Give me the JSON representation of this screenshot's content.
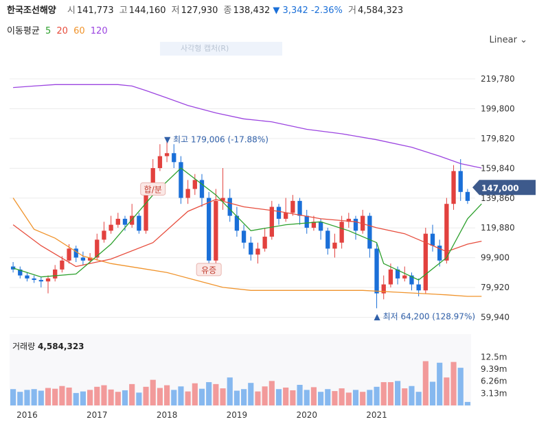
{
  "header": {
    "name": "한국조선해양",
    "open_label": "시",
    "open": "141,773",
    "high_label": "고",
    "high": "144,160",
    "low_label": "저",
    "low": "127,930",
    "close_label": "종",
    "close": "138,432",
    "change": "▼ 3,342 -2.36%",
    "volume_label": "거",
    "volume": "4,584,323"
  },
  "ma": {
    "title": "이동평균",
    "ma5": "5",
    "ma20": "20",
    "ma60": "60",
    "ma120": "120"
  },
  "controls": {
    "scale": "Linear",
    "capture": "사각형 캡처(R)"
  },
  "colors": {
    "up": "#e2413e",
    "down": "#1a6fd8",
    "ma5": "#2ca02c",
    "ma20": "#e74c3c",
    "ma60": "#f0932b",
    "ma120": "#9b44e0"
  },
  "chart_data": {
    "type": "candlestick",
    "price_ticks": [
      "219,780",
      "199,800",
      "179,820",
      "159,840",
      "139,860",
      "119,880",
      "99,900",
      "79,920",
      "59,940"
    ],
    "price_tick_values": [
      219780,
      199800,
      179820,
      159840,
      139860,
      119880,
      99900,
      79920,
      59940
    ],
    "ylim": [
      51000,
      229000
    ],
    "x_ticks": [
      "2016",
      "2017",
      "2018",
      "2019",
      "2020",
      "2021"
    ],
    "current_price_label": "147,000",
    "current_price": 147000,
    "high_annotation": "▼ 최고 179,006 (-17.88%)",
    "low_annotation": "▲ 최저 64,200 (128.97%)",
    "event_labels": [
      "합/분",
      "유증"
    ],
    "volume_title": "거래량",
    "volume_value": "4,584,323",
    "volume_ticks": [
      "12.5m",
      "9.39m",
      "6.26m",
      "3.13m"
    ],
    "volume_tick_values": [
      12.5,
      9.39,
      6.26,
      3.13
    ],
    "volume_ylim": [
      0,
      15.2
    ],
    "candles": [
      [
        94,
        92,
        97,
        90,
        4.2
      ],
      [
        92,
        88,
        94,
        86,
        3.5
      ],
      [
        88,
        86,
        90,
        84,
        4.0
      ],
      [
        86,
        85,
        88,
        83,
        4.2
      ],
      [
        85,
        84,
        87,
        80,
        3.8
      ],
      [
        84,
        86,
        88,
        76,
        4.5
      ],
      [
        86,
        92,
        95,
        84,
        4.3
      ],
      [
        92,
        98,
        101,
        90,
        5.0
      ],
      [
        98,
        106,
        109,
        96,
        4.6
      ],
      [
        106,
        100,
        108,
        97,
        3.2
      ],
      [
        100,
        98,
        104,
        95,
        3.6
      ],
      [
        98,
        100,
        103,
        96,
        4.0
      ],
      [
        100,
        112,
        116,
        98,
        4.8
      ],
      [
        112,
        118,
        124,
        110,
        5.2
      ],
      [
        118,
        122,
        128,
        116,
        4.1
      ],
      [
        122,
        126,
        130,
        120,
        3.5
      ],
      [
        126,
        122,
        128,
        118,
        3.9
      ],
      [
        122,
        128,
        136,
        120,
        5.5
      ],
      [
        128,
        118,
        130,
        116,
        3.3
      ],
      [
        118,
        146,
        150,
        116,
        4.8
      ],
      [
        146,
        160,
        166,
        144,
        6.6
      ],
      [
        160,
        168,
        176,
        158,
        4.5
      ],
      [
        168,
        170,
        178,
        164,
        5.2
      ],
      [
        170,
        164,
        176,
        160,
        4.0
      ],
      [
        164,
        140,
        168,
        136,
        4.9
      ],
      [
        140,
        146,
        152,
        136,
        3.6
      ],
      [
        146,
        152,
        156,
        142,
        5.7
      ],
      [
        152,
        140,
        156,
        134,
        4.3
      ],
      [
        140,
        98,
        144,
        96,
        6.0
      ],
      [
        98,
        138,
        146,
        96,
        5.5
      ],
      [
        138,
        140,
        160,
        132,
        4.4
      ],
      [
        140,
        128,
        146,
        124,
        7.2
      ],
      [
        128,
        118,
        134,
        114,
        3.8
      ],
      [
        118,
        110,
        122,
        106,
        4.2
      ],
      [
        110,
        102,
        114,
        98,
        5.8
      ],
      [
        102,
        106,
        110,
        96,
        3.6
      ],
      [
        106,
        114,
        120,
        104,
        4.9
      ],
      [
        114,
        134,
        138,
        112,
        6.3
      ],
      [
        134,
        126,
        136,
        122,
        4.2
      ],
      [
        126,
        130,
        140,
        124,
        4.6
      ],
      [
        130,
        138,
        142,
        128,
        3.9
      ],
      [
        138,
        128,
        140,
        122,
        5.3
      ],
      [
        128,
        120,
        132,
        116,
        4.0
      ],
      [
        120,
        124,
        128,
        118,
        4.7
      ],
      [
        124,
        118,
        126,
        112,
        3.5
      ],
      [
        118,
        106,
        120,
        102,
        4.2
      ],
      [
        106,
        110,
        116,
        100,
        3.7
      ],
      [
        110,
        124,
        128,
        106,
        4.4
      ],
      [
        124,
        126,
        130,
        120,
        3.3
      ],
      [
        126,
        118,
        128,
        112,
        4.0
      ],
      [
        118,
        128,
        132,
        116,
        3.5
      ],
      [
        128,
        106,
        130,
        100,
        4.0
      ],
      [
        106,
        76,
        110,
        66,
        4.8
      ],
      [
        76,
        82,
        88,
        72,
        6.0
      ],
      [
        82,
        92,
        96,
        80,
        6.0
      ],
      [
        92,
        86,
        94,
        82,
        6.3
      ],
      [
        86,
        88,
        94,
        84,
        4.4
      ],
      [
        88,
        82,
        90,
        78,
        5.0
      ],
      [
        82,
        78,
        86,
        74,
        3.5
      ],
      [
        78,
        116,
        120,
        76,
        11.4
      ],
      [
        116,
        108,
        122,
        104,
        6.1
      ],
      [
        108,
        98,
        112,
        94,
        11.0
      ],
      [
        98,
        136,
        140,
        96,
        7.2
      ],
      [
        136,
        158,
        162,
        132,
        11.2
      ],
      [
        158,
        144,
        166,
        138,
        9.7
      ],
      [
        144,
        138,
        146,
        136,
        0.9
      ]
    ],
    "ma5": [
      [
        0,
        93
      ],
      [
        4,
        87
      ],
      [
        9,
        89
      ],
      [
        14,
        109
      ],
      [
        20,
        142
      ],
      [
        24,
        160
      ],
      [
        29,
        142
      ],
      [
        34,
        118
      ],
      [
        39,
        122
      ],
      [
        44,
        124
      ],
      [
        48,
        118
      ],
      [
        52,
        110
      ],
      [
        53,
        96
      ],
      [
        58,
        85
      ],
      [
        62,
        100
      ],
      [
        65,
        126
      ],
      [
        67,
        136
      ]
    ],
    "ma20": [
      [
        0,
        122
      ],
      [
        4,
        108
      ],
      [
        9,
        94
      ],
      [
        14,
        99
      ],
      [
        20,
        110
      ],
      [
        25,
        131
      ],
      [
        29,
        139
      ],
      [
        33,
        134
      ],
      [
        38,
        131
      ],
      [
        44,
        126
      ],
      [
        49,
        124
      ],
      [
        52,
        120
      ],
      [
        56,
        116
      ],
      [
        59,
        110
      ],
      [
        62,
        104
      ],
      [
        65,
        109
      ],
      [
        67,
        111
      ]
    ],
    "ma60": [
      [
        0,
        140
      ],
      [
        3,
        119
      ],
      [
        6,
        113
      ],
      [
        10,
        101
      ],
      [
        14,
        96
      ],
      [
        18,
        93
      ],
      [
        22,
        90
      ],
      [
        26,
        85
      ],
      [
        30,
        80
      ],
      [
        34,
        78
      ],
      [
        38,
        78
      ],
      [
        42,
        78
      ],
      [
        46,
        78
      ],
      [
        50,
        78
      ],
      [
        54,
        77
      ],
      [
        58,
        76
      ],
      [
        62,
        75
      ],
      [
        65,
        74
      ],
      [
        67,
        74
      ]
    ],
    "ma120": [
      [
        0,
        214
      ],
      [
        3,
        215
      ],
      [
        6,
        216
      ],
      [
        9,
        216
      ],
      [
        12,
        216
      ],
      [
        15,
        216
      ],
      [
        17,
        215
      ],
      [
        19,
        212
      ],
      [
        22,
        207
      ],
      [
        25,
        202
      ],
      [
        29,
        197
      ],
      [
        33,
        193
      ],
      [
        37,
        191
      ],
      [
        42,
        186
      ],
      [
        47,
        183
      ],
      [
        52,
        179
      ],
      [
        57,
        174
      ],
      [
        61,
        168
      ],
      [
        64,
        163
      ],
      [
        67,
        160
      ]
    ]
  }
}
